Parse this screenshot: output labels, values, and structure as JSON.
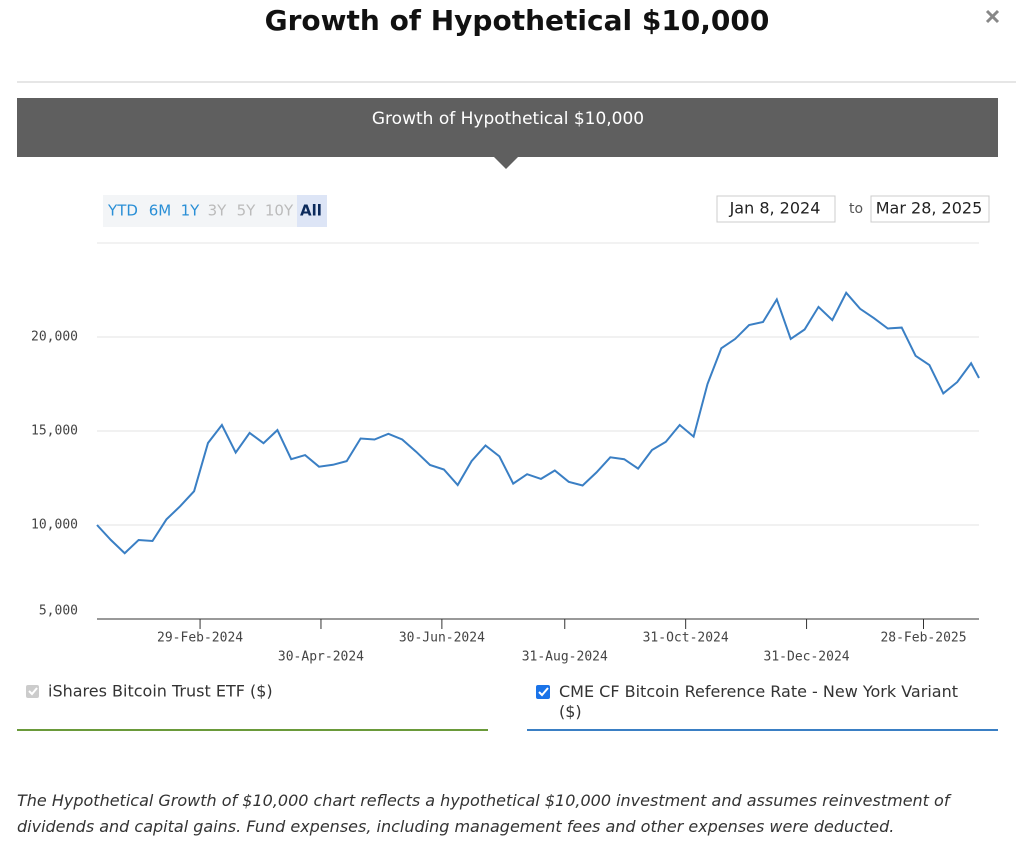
{
  "header": {
    "title": "Growth of Hypothetical $10,000"
  },
  "banner": {
    "title": "Growth of Hypothetical $10,000"
  },
  "range_buttons": [
    "YTD",
    "6M",
    "1Y",
    "3Y",
    "5Y",
    "10Y",
    "All"
  ],
  "date_range": {
    "start": "Jan 8, 2024",
    "separator": "to",
    "end": "Mar 28, 2025"
  },
  "inactive_legend": {
    "label": "iShares Bitcoin Trust ETF ($)",
    "color": "#6a9a3a"
  },
  "chart_data": {
    "type": "line",
    "x": [
      "2024-01-08",
      "2024-01-15",
      "2024-01-22",
      "2024-01-29",
      "2024-02-05",
      "2024-02-12",
      "2024-02-19",
      "2024-02-26",
      "2024-03-04",
      "2024-03-11",
      "2024-03-18",
      "2024-03-25",
      "2024-04-01",
      "2024-04-08",
      "2024-04-15",
      "2024-04-22",
      "2024-04-29",
      "2024-05-06",
      "2024-05-13",
      "2024-05-20",
      "2024-05-27",
      "2024-06-03",
      "2024-06-10",
      "2024-06-17",
      "2024-06-24",
      "2024-07-01",
      "2024-07-08",
      "2024-07-15",
      "2024-07-22",
      "2024-07-29",
      "2024-08-05",
      "2024-08-12",
      "2024-08-19",
      "2024-08-26",
      "2024-09-02",
      "2024-09-09",
      "2024-09-16",
      "2024-09-23",
      "2024-09-30",
      "2024-10-07",
      "2024-10-14",
      "2024-10-21",
      "2024-10-28",
      "2024-11-04",
      "2024-11-11",
      "2024-11-18",
      "2024-11-25",
      "2024-12-02",
      "2024-12-09",
      "2024-12-16",
      "2024-12-23",
      "2024-12-30",
      "2025-01-06",
      "2025-01-13",
      "2025-01-20",
      "2025-01-27",
      "2025-02-03",
      "2025-02-10",
      "2025-02-17",
      "2025-02-24",
      "2025-03-03",
      "2025-03-10",
      "2025-03-17",
      "2025-03-24",
      "2025-03-28"
    ],
    "series": [
      {
        "name": "CME CF Bitcoin Reference Rate - New York Variant ($)",
        "color": "#3a7fc4",
        "values": [
          10000,
          9200,
          8500,
          9200,
          9150,
          10300,
          11000,
          11800,
          14360,
          15320,
          13850,
          14900,
          14350,
          15050,
          13500,
          13720,
          13100,
          13200,
          13400,
          14600,
          14550,
          14850,
          14550,
          13900,
          13190,
          12950,
          12130,
          13400,
          14230,
          13650,
          12200,
          12700,
          12450,
          12900,
          12300,
          12100,
          12800,
          13600,
          13500,
          13000,
          13990,
          14420,
          15320,
          14700,
          17500,
          19400,
          19900,
          20640,
          20800,
          22000,
          19900,
          20400,
          21600,
          20900,
          22350,
          21500,
          21000,
          20450,
          20500,
          19000,
          18510,
          17000,
          17600,
          18600,
          17820
        ]
      }
    ],
    "xlim": [
      "2024-01-08",
      "2025-03-28"
    ],
    "xticks": [
      {
        "value": "2024-02-29",
        "label": "29-Feb-2024"
      },
      {
        "value": "2024-04-30",
        "label": "30-Apr-2024"
      },
      {
        "value": "2024-06-30",
        "label": "30-Jun-2024"
      },
      {
        "value": "2024-08-31",
        "label": "31-Aug-2024"
      },
      {
        "value": "2024-10-31",
        "label": "31-Oct-2024"
      },
      {
        "value": "2024-12-31",
        "label": "31-Dec-2024"
      },
      {
        "value": "2025-02-28",
        "label": "28-Feb-2025"
      }
    ],
    "ylim": [
      5000,
      25000
    ],
    "yticks": [
      {
        "value": 5000,
        "label": "5,000"
      },
      {
        "value": 10000,
        "label": "10,000"
      },
      {
        "value": 15000,
        "label": "15,000"
      },
      {
        "value": 20000,
        "label": "20,000"
      }
    ],
    "grid": true
  },
  "footnote": "The Hypothetical Growth of $10,000 chart reflects a hypothetical $10,000 investment and assumes reinvestment of dividends and capital gains. Fund expenses, including management fees and other expenses were deducted."
}
